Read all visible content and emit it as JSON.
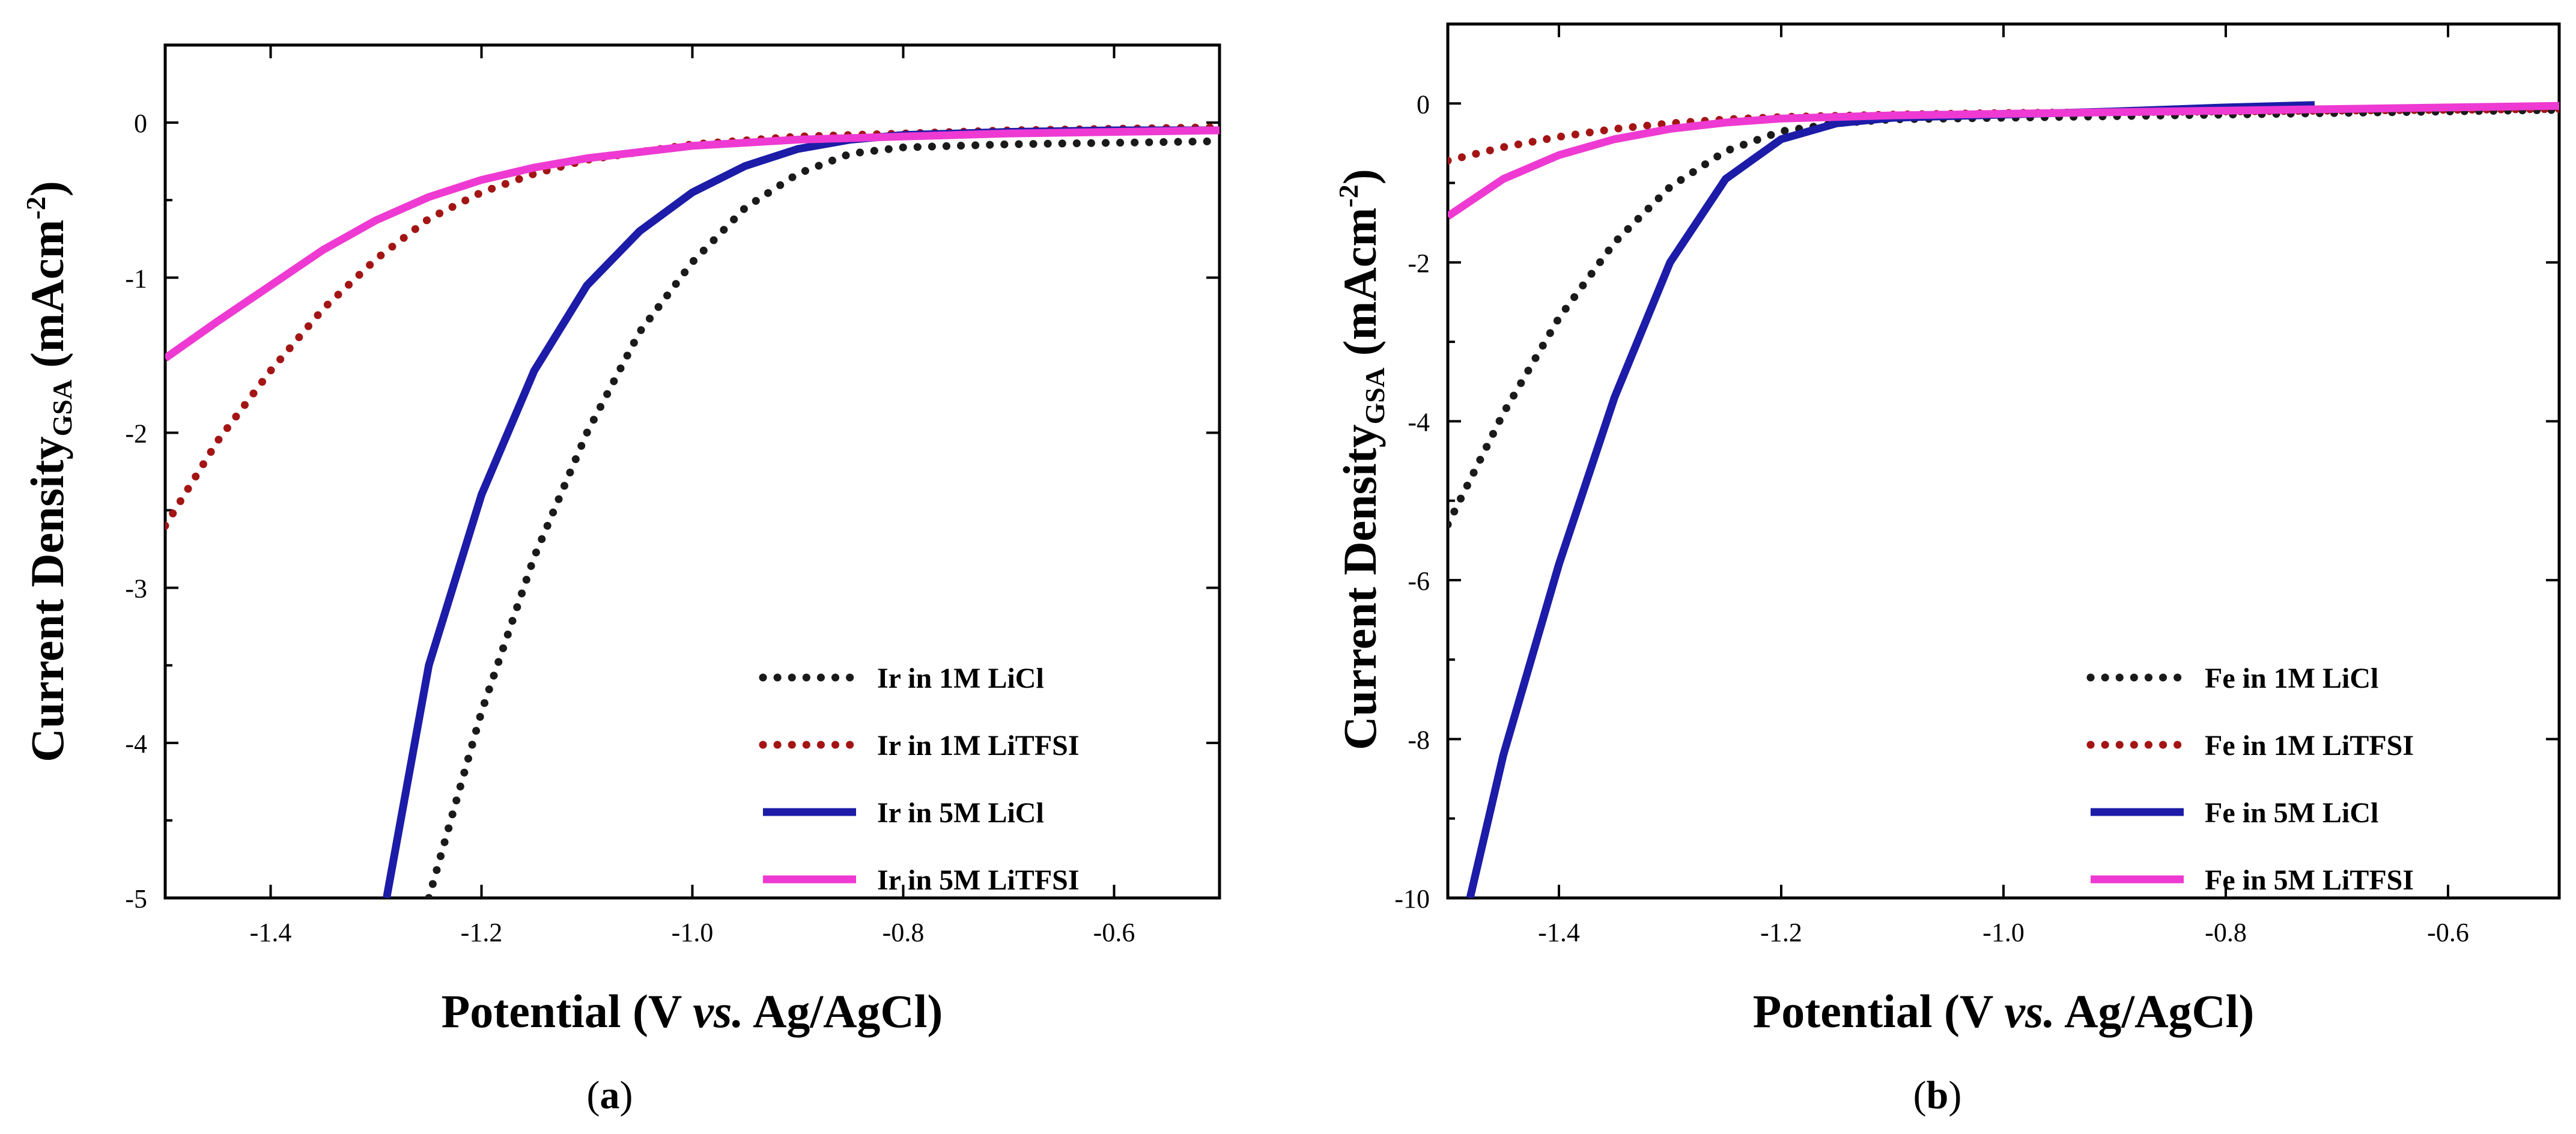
{
  "chart_data": [
    {
      "type": "line",
      "panel_label": "(a)",
      "panel_letter": "a",
      "xlabel": "Potential (V vs. Ag/AgCl)",
      "ylabel": "Current Density GSA (mAcm-2)",
      "xlim": [
        -1.5,
        -0.5
      ],
      "ylim": [
        -5,
        0.5
      ],
      "xticks": [
        -1.4,
        -1.2,
        -1.0,
        -0.8,
        -0.6
      ],
      "xtick_labels": [
        "-1.4",
        "-1.2",
        "-1.0",
        "-0.8",
        "-0.6"
      ],
      "yticks": [
        0,
        -1,
        -2,
        -3,
        -4,
        -5
      ],
      "ytick_labels": [
        "0",
        "-1",
        "-2",
        "-3",
        "-4",
        "-5"
      ],
      "legend_position": "bottom-right",
      "series": [
        {
          "name": "Ir in 1M LiCl",
          "color": "#1a1a1a",
          "style": "dotted",
          "x": [
            -1.25,
            -1.2,
            -1.15,
            -1.1,
            -1.05,
            -1.0,
            -0.95,
            -0.9,
            -0.85,
            -0.8,
            -0.75,
            -0.7,
            -0.6,
            -0.5
          ],
          "y": [
            -5.0,
            -3.8,
            -2.8,
            -2.0,
            -1.35,
            -0.9,
            -0.55,
            -0.33,
            -0.2,
            -0.16,
            -0.15,
            -0.14,
            -0.13,
            -0.12
          ]
        },
        {
          "name": "Ir in 1M LiTFSI",
          "color": "#a31515",
          "style": "dotted",
          "x": [
            -1.5,
            -1.45,
            -1.4,
            -1.35,
            -1.3,
            -1.25,
            -1.2,
            -1.15,
            -1.1,
            -1.0,
            -0.9,
            -0.8,
            -0.7,
            -0.6,
            -0.5
          ],
          "y": [
            -2.6,
            -2.05,
            -1.6,
            -1.2,
            -0.88,
            -0.62,
            -0.45,
            -0.33,
            -0.24,
            -0.14,
            -0.09,
            -0.07,
            -0.05,
            -0.04,
            -0.03
          ]
        },
        {
          "name": "Ir in 5M LiCl",
          "color": "#1c1ca8",
          "style": "solid",
          "x": [
            -1.29,
            -1.25,
            -1.2,
            -1.15,
            -1.1,
            -1.05,
            -1.0,
            -0.95,
            -0.9,
            -0.85,
            -0.8,
            -0.75,
            -0.7,
            -0.6,
            -0.5
          ],
          "y": [
            -5.0,
            -3.5,
            -2.4,
            -1.6,
            -1.05,
            -0.7,
            -0.45,
            -0.28,
            -0.17,
            -0.11,
            -0.08,
            -0.07,
            -0.06,
            -0.05,
            -0.05
          ]
        },
        {
          "name": "Ir in 5M LiTFSI",
          "color": "#ee3ad2",
          "style": "solid",
          "x": [
            -1.5,
            -1.45,
            -1.4,
            -1.35,
            -1.3,
            -1.25,
            -1.2,
            -1.15,
            -1.1,
            -1.0,
            -0.9,
            -0.8,
            -0.7,
            -0.6,
            -0.5
          ],
          "y": [
            -1.52,
            -1.28,
            -1.05,
            -0.82,
            -0.63,
            -0.48,
            -0.37,
            -0.29,
            -0.23,
            -0.15,
            -0.11,
            -0.09,
            -0.07,
            -0.06,
            -0.05
          ]
        }
      ]
    },
    {
      "type": "line",
      "panel_label": "(b)",
      "panel_letter": "b",
      "xlabel": "Potential (V vs. Ag/AgCl)",
      "ylabel": "Current Density GSA (mAcm-2)",
      "xlim": [
        -1.5,
        -0.5
      ],
      "ylim": [
        -10,
        1
      ],
      "xticks": [
        -1.4,
        -1.2,
        -1.0,
        -0.8,
        -0.6
      ],
      "xtick_labels": [
        "-1.4",
        "-1.2",
        "-1.0",
        "-0.8",
        "-0.6"
      ],
      "yticks": [
        0,
        -2,
        -4,
        -6,
        -8,
        -10
      ],
      "ytick_labels": [
        "0",
        "-2",
        "-4",
        "-6",
        "-8",
        "-10"
      ],
      "legend_position": "bottom-right",
      "series": [
        {
          "name": "Fe in 1M LiCl",
          "color": "#1a1a1a",
          "style": "dotted",
          "x": [
            -1.5,
            -1.45,
            -1.4,
            -1.35,
            -1.3,
            -1.25,
            -1.2,
            -1.15,
            -1.1,
            -1.0,
            -0.9,
            -0.8,
            -0.7,
            -0.6,
            -0.5
          ],
          "y": [
            -5.3,
            -3.9,
            -2.7,
            -1.75,
            -1.05,
            -0.6,
            -0.35,
            -0.25,
            -0.2,
            -0.18,
            -0.16,
            -0.14,
            -0.12,
            -0.1,
            -0.08
          ]
        },
        {
          "name": "Fe in 1M LiTFSI",
          "color": "#a31515",
          "style": "dotted",
          "x": [
            -1.5,
            -1.45,
            -1.4,
            -1.35,
            -1.3,
            -1.25,
            -1.2,
            -1.1,
            -1.0,
            -0.9,
            -0.8,
            -0.7,
            -0.6,
            -0.5
          ],
          "y": [
            -0.72,
            -0.55,
            -0.42,
            -0.32,
            -0.25,
            -0.2,
            -0.17,
            -0.14,
            -0.12,
            -0.11,
            -0.1,
            -0.09,
            -0.08,
            -0.07
          ]
        },
        {
          "name": "Fe in 5M LiCl",
          "color": "#1c1ca8",
          "style": "solid",
          "x": [
            -1.48,
            -1.45,
            -1.4,
            -1.35,
            -1.3,
            -1.25,
            -1.2,
            -1.15,
            -1.1,
            -1.05,
            -1.0,
            -0.9,
            -0.8,
            -0.72
          ],
          "y": [
            -10.0,
            -8.2,
            -5.8,
            -3.7,
            -2.0,
            -0.95,
            -0.45,
            -0.25,
            -0.18,
            -0.16,
            -0.14,
            -0.1,
            -0.05,
            -0.02
          ]
        },
        {
          "name": "Fe in 5M LiTFSI",
          "color": "#ee3ad2",
          "style": "solid",
          "x": [
            -1.5,
            -1.45,
            -1.4,
            -1.35,
            -1.3,
            -1.25,
            -1.2,
            -1.1,
            -1.0,
            -0.9,
            -0.8,
            -0.7,
            -0.6,
            -0.5
          ],
          "y": [
            -1.42,
            -0.95,
            -0.65,
            -0.45,
            -0.32,
            -0.24,
            -0.19,
            -0.15,
            -0.13,
            -0.11,
            -0.09,
            -0.07,
            -0.05,
            -0.03
          ]
        }
      ]
    }
  ]
}
